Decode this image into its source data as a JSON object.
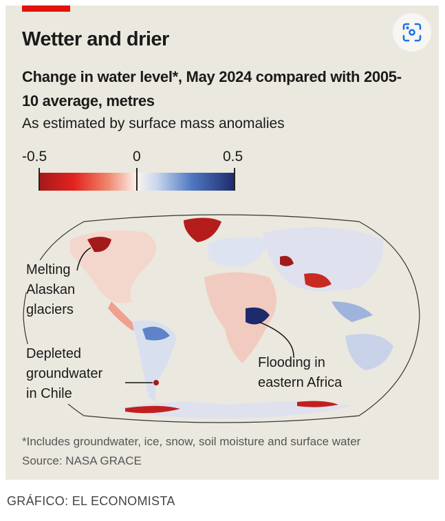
{
  "chart": {
    "title": "Wetter and drier",
    "subtitle": "Change in water level*, May 2024 compared with 2005-10 average, metres",
    "note": "As estimated by surface mass anomalies",
    "footnote": "*Includes groundwater, ice, snow, soil moisture and surface water",
    "source": "Source: NASA GRACE"
  },
  "chart_data": {
    "type": "heatmap",
    "legend": {
      "ticks": [
        "-0.5",
        "0",
        "0.5"
      ],
      "min": -0.5,
      "max": 0.5,
      "colors": {
        "low": "#a31a1a",
        "mid": "#fbf3ee",
        "high": "#1d2a6b"
      }
    },
    "annotations": [
      {
        "lines": [
          "Melting",
          "Alaskan",
          "glaciers"
        ]
      },
      {
        "lines": [
          "Depleted",
          "groundwater",
          "in Chile"
        ]
      },
      {
        "lines": [
          "Flooding in",
          "eastern Africa"
        ]
      }
    ]
  },
  "caption": "GRÁFICO: EL ECONOMISTA",
  "colors": {
    "accent": "#e3120b",
    "background": "#ebe8df",
    "lens": "#1a73e8"
  }
}
